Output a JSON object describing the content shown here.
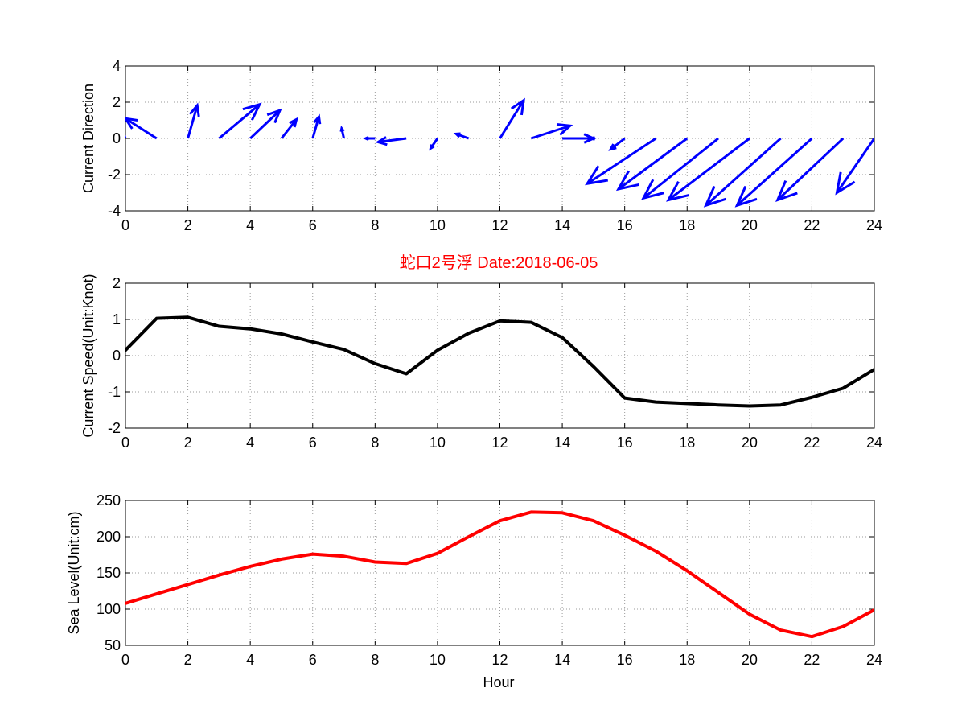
{
  "chart_data": [
    {
      "type": "quiver",
      "ylabel": "Current Direction",
      "xlim": [
        0,
        24
      ],
      "ylim": [
        -4,
        4
      ],
      "xticks": [
        0,
        2,
        4,
        6,
        8,
        10,
        12,
        14,
        16,
        18,
        20,
        22,
        24
      ],
      "yticks": [
        -4,
        -2,
        0,
        2,
        4
      ],
      "grid": true,
      "color": "#0000ff",
      "origins_x": [
        0,
        1,
        2,
        3,
        4,
        5,
        6,
        7,
        8,
        9,
        10,
        11,
        12,
        13,
        14,
        15,
        16,
        17,
        18,
        19,
        20,
        21,
        22,
        23,
        24
      ],
      "u": [
        -0.1,
        -1.0,
        0.3,
        1.3,
        0.95,
        0.48,
        0.2,
        -0.07,
        -0.3,
        -0.9,
        -0.22,
        -0.4,
        0.76,
        1.25,
        1.0,
        -0.05,
        -0.45,
        -2.2,
        -2.2,
        -2.4,
        -2.6,
        -2.4,
        -2.4,
        -2.1,
        -1.2
      ],
      "v": [
        0.45,
        1.1,
        1.82,
        1.88,
        1.55,
        1.05,
        1.2,
        0.55,
        0.0,
        -0.2,
        -0.55,
        0.25,
        2.1,
        0.7,
        0.0,
        0.0,
        -0.6,
        -2.5,
        -2.8,
        -3.3,
        -3.4,
        -3.7,
        -3.7,
        -3.4,
        -3.0
      ]
    },
    {
      "type": "line",
      "title": "蛇口2号浮    Date:2018-06-05",
      "ylabel": "Current Speed(Unit:Knot)",
      "xlim": [
        0,
        24
      ],
      "ylim": [
        -2,
        2
      ],
      "xticks": [
        0,
        2,
        4,
        6,
        8,
        10,
        12,
        14,
        16,
        18,
        20,
        22,
        24
      ],
      "yticks": [
        -2,
        -1,
        0,
        1,
        2
      ],
      "grid": true,
      "color": "#000000",
      "x": [
        0,
        1,
        2,
        3,
        4,
        5,
        6,
        7,
        8,
        9,
        10,
        11,
        12,
        13,
        14,
        15,
        16,
        17,
        18,
        19,
        20,
        21,
        22,
        23,
        24
      ],
      "y": [
        0.15,
        1.03,
        1.06,
        0.81,
        0.74,
        0.6,
        0.38,
        0.17,
        -0.22,
        -0.5,
        0.15,
        0.62,
        0.96,
        0.92,
        0.5,
        -0.3,
        -1.17,
        -1.28,
        -1.32,
        -1.36,
        -1.39,
        -1.36,
        -1.15,
        -0.9,
        -0.38
      ]
    },
    {
      "type": "line",
      "xlabel": "Hour",
      "ylabel": "Sea Level(Unit:cm)",
      "xlim": [
        0,
        24
      ],
      "ylim": [
        50,
        250
      ],
      "xticks": [
        0,
        2,
        4,
        6,
        8,
        10,
        12,
        14,
        16,
        18,
        20,
        22,
        24
      ],
      "yticks": [
        50,
        100,
        150,
        200,
        250
      ],
      "grid": true,
      "color": "#ff0000",
      "x": [
        0,
        1,
        2,
        3,
        4,
        5,
        6,
        7,
        8,
        9,
        10,
        11,
        12,
        13,
        14,
        15,
        16,
        17,
        18,
        19,
        20,
        21,
        22,
        23,
        24
      ],
      "y": [
        108,
        121,
        134,
        147,
        159,
        169,
        176,
        173,
        165,
        163,
        177,
        200,
        222,
        234,
        233,
        222,
        202,
        180,
        153,
        123,
        93,
        71,
        62,
        76,
        99
      ]
    }
  ]
}
